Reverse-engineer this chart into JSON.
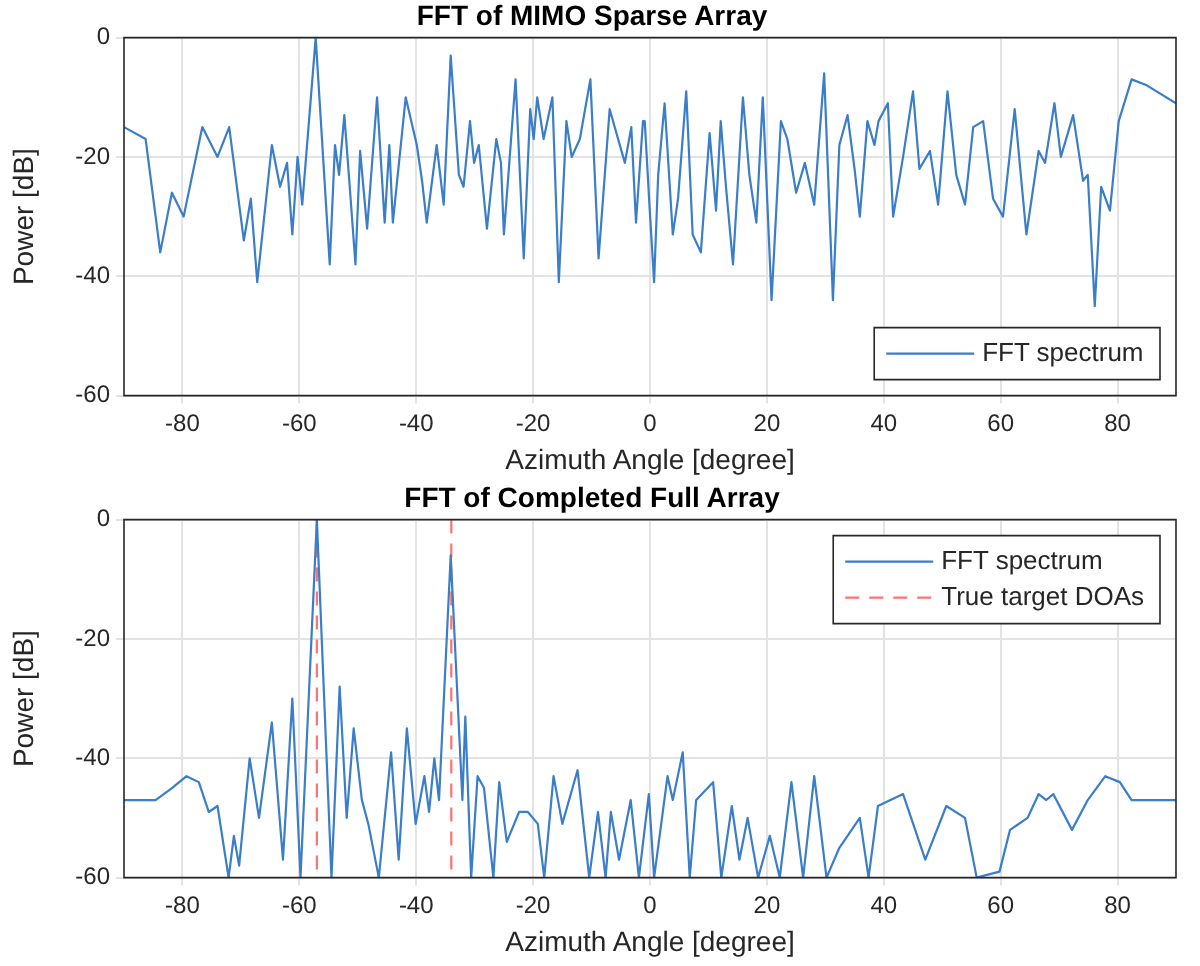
{
  "chart_data": [
    {
      "type": "line",
      "title": "FFT of MIMO Sparse Array",
      "xlabel": "Azimuth Angle [degree]",
      "ylabel": "Power [dB]",
      "xlim": [
        -90,
        90
      ],
      "xticks": [
        -80,
        -60,
        -40,
        -20,
        0,
        20,
        40,
        60,
        80
      ],
      "ylim": [
        -60,
        0
      ],
      "yticks": [
        -60,
        -40,
        -20,
        0
      ],
      "grid": true,
      "legend": "bottom right",
      "series": [
        {
          "name": "FFT spectrum",
          "color": "#3a7dc9",
          "x": [
            -90,
            -86.3,
            -83.8,
            -81.8,
            -79.8,
            -76.6,
            -74,
            -72,
            -69.5,
            -68.3,
            -67.2,
            -64.7,
            -63.3,
            -62.1,
            -61.2,
            -60.3,
            -59.5,
            -57.2,
            -54.8,
            -53.9,
            -53.2,
            -52.3,
            -51.3,
            -50.4,
            -49.6,
            -48.4,
            -46.7,
            -45.4,
            -44.6,
            -44,
            -41.8,
            -39.9,
            -39,
            -38.2,
            -36.5,
            -35.3,
            -34.1,
            -32.7,
            -31.9,
            -30.8,
            -30.1,
            -29.3,
            -27.9,
            -26.3,
            -25.5,
            -25,
            -23,
            -21.6,
            -20.5,
            -19.9,
            -19.3,
            -18.2,
            -16.7,
            -15.6,
            -14.3,
            -13.4,
            -12,
            -10.2,
            -8.8,
            -6.9,
            -4.3,
            -3.2,
            -2.4,
            -1.2,
            -0.9,
            -0.1,
            0.7,
            1.4,
            2.5,
            3.9,
            4.8,
            6.2,
            7.3,
            8.7,
            10.2,
            11.3,
            12.1,
            13,
            14.2,
            15.9,
            17,
            18.2,
            19.3,
            20.8,
            22.4,
            23.5,
            25,
            26.5,
            28.1,
            29.8,
            31.3,
            32.4,
            33.8,
            35,
            35.9,
            37.2,
            38.4,
            39.1,
            40.7,
            41.6,
            43.3,
            45,
            46.1,
            47.9,
            49.3,
            50.9,
            52.4,
            53.9,
            55.3,
            57,
            58.7,
            60.4,
            62.4,
            64.4,
            66.5,
            67.6,
            69.2,
            70.3,
            72.4,
            74.1,
            74.9,
            76.1,
            77.2,
            78.7,
            80.2,
            82.4,
            85,
            90
          ],
          "values": [
            -15,
            -17,
            -36,
            -26,
            -30,
            -15,
            -20,
            -15,
            -34,
            -27,
            -41,
            -18,
            -25,
            -21,
            -33,
            -20,
            -28,
            0,
            -38,
            -18,
            -23,
            -13,
            -26,
            -38,
            -19,
            -32,
            -10,
            -31,
            -18,
            -31,
            -10,
            -18,
            -24,
            -31,
            -18,
            -28,
            -3,
            -23,
            -25,
            -14,
            -21,
            -18,
            -32,
            -17,
            -21,
            -33,
            -7,
            -37,
            -12,
            -17,
            -10,
            -17,
            -10,
            -41,
            -14,
            -20,
            -17,
            -7,
            -37,
            -12,
            -21,
            -15,
            -31,
            -14,
            -14,
            -28,
            -41,
            -23,
            -11,
            -33,
            -27,
            -9,
            -33,
            -36,
            -16,
            -29,
            -14,
            -25,
            -38,
            -10,
            -23,
            -31,
            -10,
            -44,
            -14,
            -17,
            -26,
            -21,
            -28,
            -6,
            -44,
            -18,
            -13,
            -22,
            -30,
            -14,
            -18,
            -14,
            -11,
            -30,
            -20,
            -9,
            -22,
            -19,
            -28,
            -9,
            -23,
            -28,
            -15,
            -14,
            -27,
            -30,
            -12,
            -33,
            -19,
            -21,
            -11,
            -20,
            -13,
            -24,
            -23,
            -45,
            -25,
            -29,
            -14,
            -7,
            -8,
            -11
          ]
        }
      ]
    },
    {
      "type": "line",
      "title": "FFT of Completed Full Array",
      "xlabel": "Azimuth Angle [degree]",
      "ylabel": "Power [dB]",
      "xlim": [
        -90,
        90
      ],
      "xticks": [
        -80,
        -60,
        -40,
        -20,
        0,
        20,
        40,
        60,
        80
      ],
      "ylim": [
        -60,
        0
      ],
      "yticks": [
        -60,
        -40,
        -20,
        0
      ],
      "grid": true,
      "legend": "top right",
      "series": [
        {
          "name": "FFT spectrum",
          "color": "#3a7dc9",
          "x": [
            -90,
            -84.6,
            -81.8,
            -79.3,
            -77.2,
            -75.5,
            -74,
            -72.1,
            -71.2,
            -70.3,
            -68.5,
            -66.9,
            -64.7,
            -62.8,
            -61.2,
            -59.8,
            -57,
            -54.5,
            -53.1,
            -51.9,
            -50.7,
            -49.3,
            -48.2,
            -46.4,
            -44.3,
            -43,
            -41.6,
            -40.1,
            -38.6,
            -37.8,
            -36.9,
            -36.1,
            -34.1,
            -32.1,
            -31.6,
            -30.6,
            -29.5,
            -28.4,
            -26.8,
            -25.8,
            -24.5,
            -22.4,
            -20.9,
            -19.2,
            -18.1,
            -16.5,
            -15,
            -12.4,
            -10.4,
            -8.9,
            -7.6,
            -6.7,
            -5.3,
            -3.3,
            -1.9,
            -0.2,
            0.7,
            3,
            3.9,
            5.6,
            6.8,
            7.9,
            10.8,
            12.2,
            14,
            15.3,
            16.7,
            18.5,
            20.5,
            22.2,
            24.2,
            26.2,
            28.1,
            30.2,
            32.4,
            35.9,
            37.4,
            39,
            43.3,
            47.1,
            50.7,
            53.9,
            55.9,
            59.8,
            61.6,
            64.6,
            66.5,
            67.8,
            69,
            72.2,
            74.9,
            77.9,
            80.4,
            82.4,
            90
          ],
          "values": [
            -47,
            -47,
            -45,
            -43,
            -44,
            -49,
            -48,
            -60,
            -53,
            -58,
            -40,
            -50,
            -34,
            -57,
            -30,
            -60,
            0,
            -60,
            -28,
            -50,
            -35,
            -47,
            -51,
            -60,
            -39,
            -57,
            -35,
            -51,
            -43,
            -49,
            -40,
            -47,
            -6,
            -47,
            -33,
            -60,
            -43,
            -45,
            -60,
            -44,
            -54,
            -49,
            -49,
            -51,
            -60,
            -43,
            -51,
            -42,
            -60,
            -49,
            -60,
            -49,
            -57,
            -47,
            -60,
            -46,
            -60,
            -43,
            -47,
            -39,
            -60,
            -47,
            -44,
            -60,
            -48,
            -57,
            -50,
            -60,
            -53,
            -60,
            -44,
            -60,
            -43,
            -60,
            -55,
            -50,
            -60,
            -48,
            -46,
            -57,
            -48,
            -50,
            -60,
            -59,
            -52,
            -50,
            -46,
            -47,
            -46,
            -52,
            -47,
            -43,
            -44,
            -47,
            -47
          ]
        },
        {
          "name": "True target DOAs",
          "color": "#ff7070",
          "line_style": "dashed",
          "x": [
            -57,
            -57,
            null,
            -34,
            -34
          ],
          "values": [
            0,
            -60,
            null,
            0,
            -60
          ]
        }
      ]
    }
  ]
}
